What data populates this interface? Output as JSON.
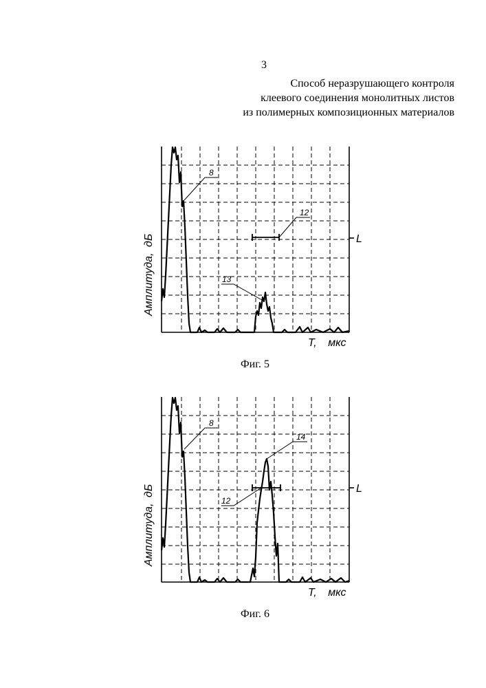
{
  "page_number": "3",
  "title_lines": [
    "Способ неразрушающего контроля",
    "клеевого соединения монолитных листов",
    "из полимерных композиционных материалов"
  ],
  "figures": [
    {
      "caption": "Фиг. 5",
      "ylabel": "Амплитуда, дБ",
      "xlabel": "T, мкс",
      "level_label": "L",
      "callouts": [
        "8",
        "12",
        "13"
      ]
    },
    {
      "caption": "Фиг. 6",
      "ylabel": "Амплитуда, дБ",
      "xlabel": "T, мкс",
      "level_label": "L",
      "callouts": [
        "8",
        "14",
        "12"
      ]
    }
  ]
}
